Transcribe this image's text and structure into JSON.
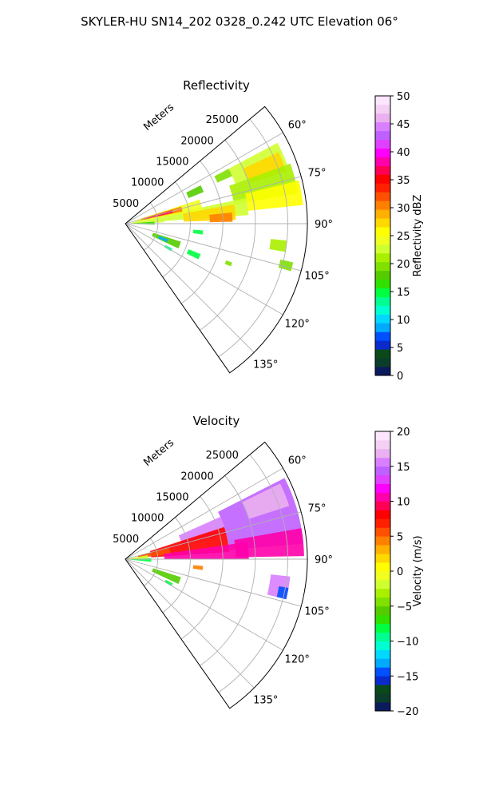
{
  "figure": {
    "title": "SKYLER-HU  SN14_202  0328_0.242 UTC Elevation 06°"
  },
  "chart_data": [
    {
      "type": "heatmap",
      "subtype": "polar-sector",
      "title": "Reflectivity",
      "radial_label": "Meters",
      "radial_ticks": [
        "5000",
        "10000",
        "15000",
        "20000",
        "25000"
      ],
      "radial_values": [
        5000,
        10000,
        15000,
        20000,
        25000
      ],
      "rmax": 28000,
      "angle_range_deg": [
        50,
        145
      ],
      "angle_ticks": [
        "60°",
        "75°",
        "90°",
        "105°",
        "120°",
        "135°"
      ],
      "angle_values": [
        60,
        75,
        90,
        105,
        120,
        135
      ],
      "grid": true,
      "colorbar": {
        "label": "Reflectivity dBZ",
        "min": 0,
        "max": 50,
        "ticks": [
          "0",
          "5",
          "10",
          "15",
          "20",
          "25",
          "30",
          "35",
          "40",
          "45",
          "50"
        ],
        "tick_values": [
          0,
          5,
          10,
          15,
          20,
          25,
          30,
          35,
          40,
          45,
          50
        ],
        "colors": [
          "#0a1a5c",
          "#0b3d2a",
          "#0a4a1a",
          "#0a2bcc",
          "#0050ff",
          "#00aaff",
          "#00d8ff",
          "#00ffd0",
          "#00ff90",
          "#00ff40",
          "#30e000",
          "#55cc00",
          "#80e000",
          "#a8f000",
          "#d0ff30",
          "#f0ff20",
          "#ffff00",
          "#ffd800",
          "#ffb000",
          "#ff8000",
          "#ff5000",
          "#ff2000",
          "#ff0000",
          "#ff0055",
          "#ff00aa",
          "#ff00ff",
          "#e040ff",
          "#c060ff",
          "#d880ff",
          "#eab0f0",
          "#f4d0f4",
          "#fbe6fb"
        ]
      },
      "cells": [
        {
          "theta": [
            62,
            70
          ],
          "r": [
            18000,
            26500
          ],
          "value": 22
        },
        {
          "theta": [
            65,
            72
          ],
          "r": [
            20000,
            26000
          ],
          "value": 27
        },
        {
          "theta": [
            70,
            80
          ],
          "r": [
            17000,
            27000
          ],
          "value": 21
        },
        {
          "theta": [
            76,
            84
          ],
          "r": [
            19000,
            27500
          ],
          "value": 26
        },
        {
          "theta": [
            78,
            86
          ],
          "r": [
            6000,
            19000
          ],
          "value": 22
        },
        {
          "theta": [
            80,
            88
          ],
          "r": [
            9000,
            17000
          ],
          "value": 28
        },
        {
          "theta": [
            84,
            89
          ],
          "r": [
            13000,
            16500
          ],
          "value": 30
        },
        {
          "theta": [
            62,
            66
          ],
          "r": [
            15500,
            18000
          ],
          "value": 20
        },
        {
          "theta": [
            63,
            68
          ],
          "r": [
            10500,
            13000
          ],
          "value": 18
        },
        {
          "theta": [
            72,
            80
          ],
          "r": [
            1500,
            12000
          ],
          "value": 24
        },
        {
          "theta": [
            73,
            78
          ],
          "r": [
            2500,
            9000
          ],
          "value": 31
        },
        {
          "theta": [
            74,
            77
          ],
          "r": [
            3000,
            7500
          ],
          "value": 36
        },
        {
          "theta": [
            80,
            88
          ],
          "r": [
            1000,
            6000
          ],
          "value": 22
        },
        {
          "theta": [
            86,
            92
          ],
          "r": [
            500,
            4500
          ],
          "value": 17
        },
        {
          "theta": [
            96,
            100
          ],
          "r": [
            22500,
            25000
          ],
          "value": 21
        },
        {
          "theta": [
            103,
            106
          ],
          "r": [
            24500,
            26500
          ],
          "value": 19
        },
        {
          "theta": [
            108,
            115
          ],
          "r": [
            4500,
            9000
          ],
          "value": 18
        },
        {
          "theta": [
            110,
            114
          ],
          "r": [
            5500,
            7000
          ],
          "value": 9
        },
        {
          "theta": [
            112,
            116
          ],
          "r": [
            10500,
            12500
          ],
          "value": 15
        },
        {
          "theta": [
            95,
            98
          ],
          "r": [
            10500,
            12000
          ],
          "value": 15
        },
        {
          "theta": [
            118,
            121
          ],
          "r": [
            7000,
            8200
          ],
          "value": 14
        },
        {
          "theta": [
            110,
            112
          ],
          "r": [
            16500,
            17500
          ],
          "value": 19
        }
      ]
    },
    {
      "type": "heatmap",
      "subtype": "polar-sector",
      "title": "Velocity",
      "radial_label": "Meters",
      "radial_ticks": [
        "5000",
        "10000",
        "15000",
        "20000",
        "25000"
      ],
      "radial_values": [
        5000,
        10000,
        15000,
        20000,
        25000
      ],
      "rmax": 28000,
      "angle_range_deg": [
        50,
        145
      ],
      "angle_ticks": [
        "60°",
        "75°",
        "90°",
        "105°",
        "120°",
        "135°"
      ],
      "angle_values": [
        60,
        75,
        90,
        105,
        120,
        135
      ],
      "grid": true,
      "colorbar": {
        "label": "Velocity (m/s)",
        "min": -20,
        "max": 20,
        "ticks": [
          "−20",
          "−15",
          "−10",
          "−5",
          "0",
          "5",
          "10",
          "15",
          "20"
        ],
        "tick_values": [
          -20,
          -15,
          -10,
          -5,
          0,
          5,
          10,
          15,
          20
        ],
        "colors": [
          "#0a1a5c",
          "#0b3d2a",
          "#0a4a1a",
          "#0a2bcc",
          "#0050ff",
          "#00aaff",
          "#00d8ff",
          "#00ffd0",
          "#00ff90",
          "#00ff40",
          "#30e000",
          "#55cc00",
          "#80e000",
          "#a8f000",
          "#d0ff30",
          "#f0ff20",
          "#ffff00",
          "#ffd800",
          "#ffb000",
          "#ff8000",
          "#ff5000",
          "#ff2000",
          "#ff0000",
          "#ff0055",
          "#ff00aa",
          "#ff00ff",
          "#e040ff",
          "#c060ff",
          "#d880ff",
          "#eab0f0",
          "#f4d0f4",
          "#fbe6fb"
        ]
      },
      "cells": [
        {
          "theta": [
            63,
            85
          ],
          "r": [
            16000,
            27500
          ],
          "value": 14
        },
        {
          "theta": [
            64,
            72
          ],
          "r": [
            20000,
            26500
          ],
          "value": 17
        },
        {
          "theta": [
            80,
            89
          ],
          "r": [
            17000,
            27500
          ],
          "value": 10
        },
        {
          "theta": [
            66,
            76
          ],
          "r": [
            9000,
            16000
          ],
          "value": 15
        },
        {
          "theta": [
            72,
            86
          ],
          "r": [
            4000,
            16000
          ],
          "value": 8
        },
        {
          "theta": [
            75,
            84
          ],
          "r": [
            2000,
            7000
          ],
          "value": 5
        },
        {
          "theta": [
            82,
            90
          ],
          "r": [
            6000,
            19000
          ],
          "value": 11
        },
        {
          "theta": [
            80,
            88
          ],
          "r": [
            500,
            3500
          ],
          "value": -2
        },
        {
          "theta": [
            88,
            96
          ],
          "r": [
            500,
            4000
          ],
          "value": -8
        },
        {
          "theta": [
            96,
            104
          ],
          "r": [
            22500,
            25500
          ],
          "value": 16
        },
        {
          "theta": [
            100,
            104
          ],
          "r": [
            24000,
            25500
          ],
          "value": -14
        },
        {
          "theta": [
            108,
            115
          ],
          "r": [
            4500,
            9000
          ],
          "value": -6
        },
        {
          "theta": [
            95,
            98
          ],
          "r": [
            10500,
            12000
          ],
          "value": 4
        },
        {
          "theta": [
            117,
            120
          ],
          "r": [
            7000,
            8200
          ],
          "value": -8
        }
      ]
    }
  ]
}
